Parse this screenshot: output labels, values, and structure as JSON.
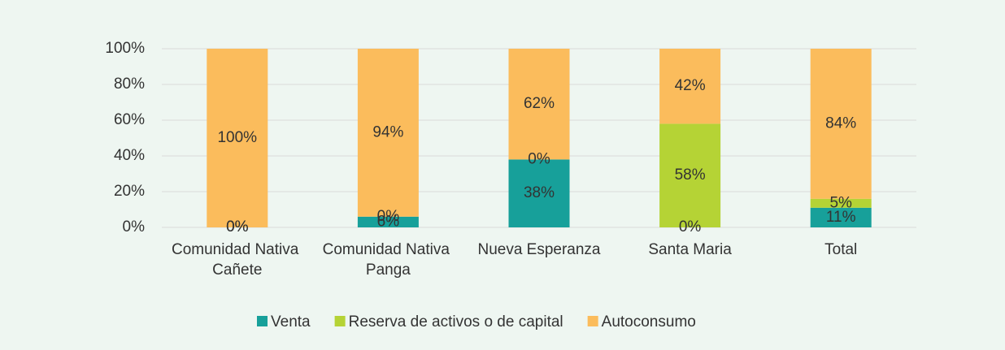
{
  "chart_data": {
    "type": "stacked_bar",
    "categories": [
      "Comunidad Nativa Cañete",
      "Comunidad Nativa Panga",
      "Nueva Esperanza",
      "Santa Maria",
      "Total"
    ],
    "series": [
      {
        "name": "Venta",
        "color": "#17a09a",
        "values": [
          0,
          6,
          38,
          0,
          11
        ],
        "value_labels": [
          "0%",
          "6%",
          "38%",
          "0%",
          "11%"
        ]
      },
      {
        "name": "Reserva de activos o de capital",
        "color": "#b5d335",
        "values": [
          0,
          0,
          0,
          58,
          5
        ],
        "value_labels": [
          "0%",
          "0%",
          "0%",
          "58%",
          "5%"
        ]
      },
      {
        "name": "Autoconsumo",
        "color": "#fbbc5c",
        "values": [
          100,
          94,
          62,
          42,
          84
        ],
        "value_labels": [
          "100%",
          "94%",
          "62%",
          "42%",
          "84%"
        ]
      }
    ],
    "ylim": [
      0,
      100
    ],
    "yticks": [
      {
        "value": 0,
        "label": "0%"
      },
      {
        "value": 20,
        "label": "20%"
      },
      {
        "value": 40,
        "label": "40%"
      },
      {
        "value": 60,
        "label": "60%"
      },
      {
        "value": 80,
        "label": "80%"
      },
      {
        "value": 100,
        "label": "100%"
      }
    ],
    "grid": true,
    "legend": "bottom"
  }
}
